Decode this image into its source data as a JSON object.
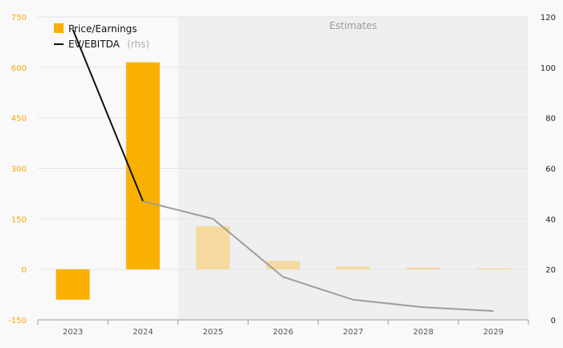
{
  "chart_data": {
    "type": "bar",
    "categories": [
      "2023",
      "2024",
      "2025",
      "2026",
      "2027",
      "2028",
      "2029"
    ],
    "series": [
      {
        "name": "Price/Earnings",
        "type": "bar",
        "axis": "left",
        "values": [
          -90,
          615,
          128,
          25,
          8,
          5,
          3
        ],
        "color": "#f9b000",
        "estimate_color": "#f5d99f"
      },
      {
        "name": "EV/EBITDA",
        "name_suffix": "(rhs)",
        "type": "line",
        "axis": "right",
        "values": [
          115,
          47,
          40,
          17,
          8,
          5,
          3.5
        ],
        "color": "#111111",
        "estimate_color": "#9e9e9e"
      }
    ],
    "estimates_label": "Estimates",
    "estimates_start_index": 2,
    "y_left": {
      "ticks": [
        -150,
        0,
        150,
        300,
        450,
        600,
        750
      ],
      "range": [
        -150,
        750
      ]
    },
    "y_right": {
      "ticks": [
        0,
        20,
        40,
        60,
        80,
        100,
        120
      ],
      "range": [
        0,
        120
      ]
    },
    "grid": true,
    "legend_position": "top-left"
  }
}
